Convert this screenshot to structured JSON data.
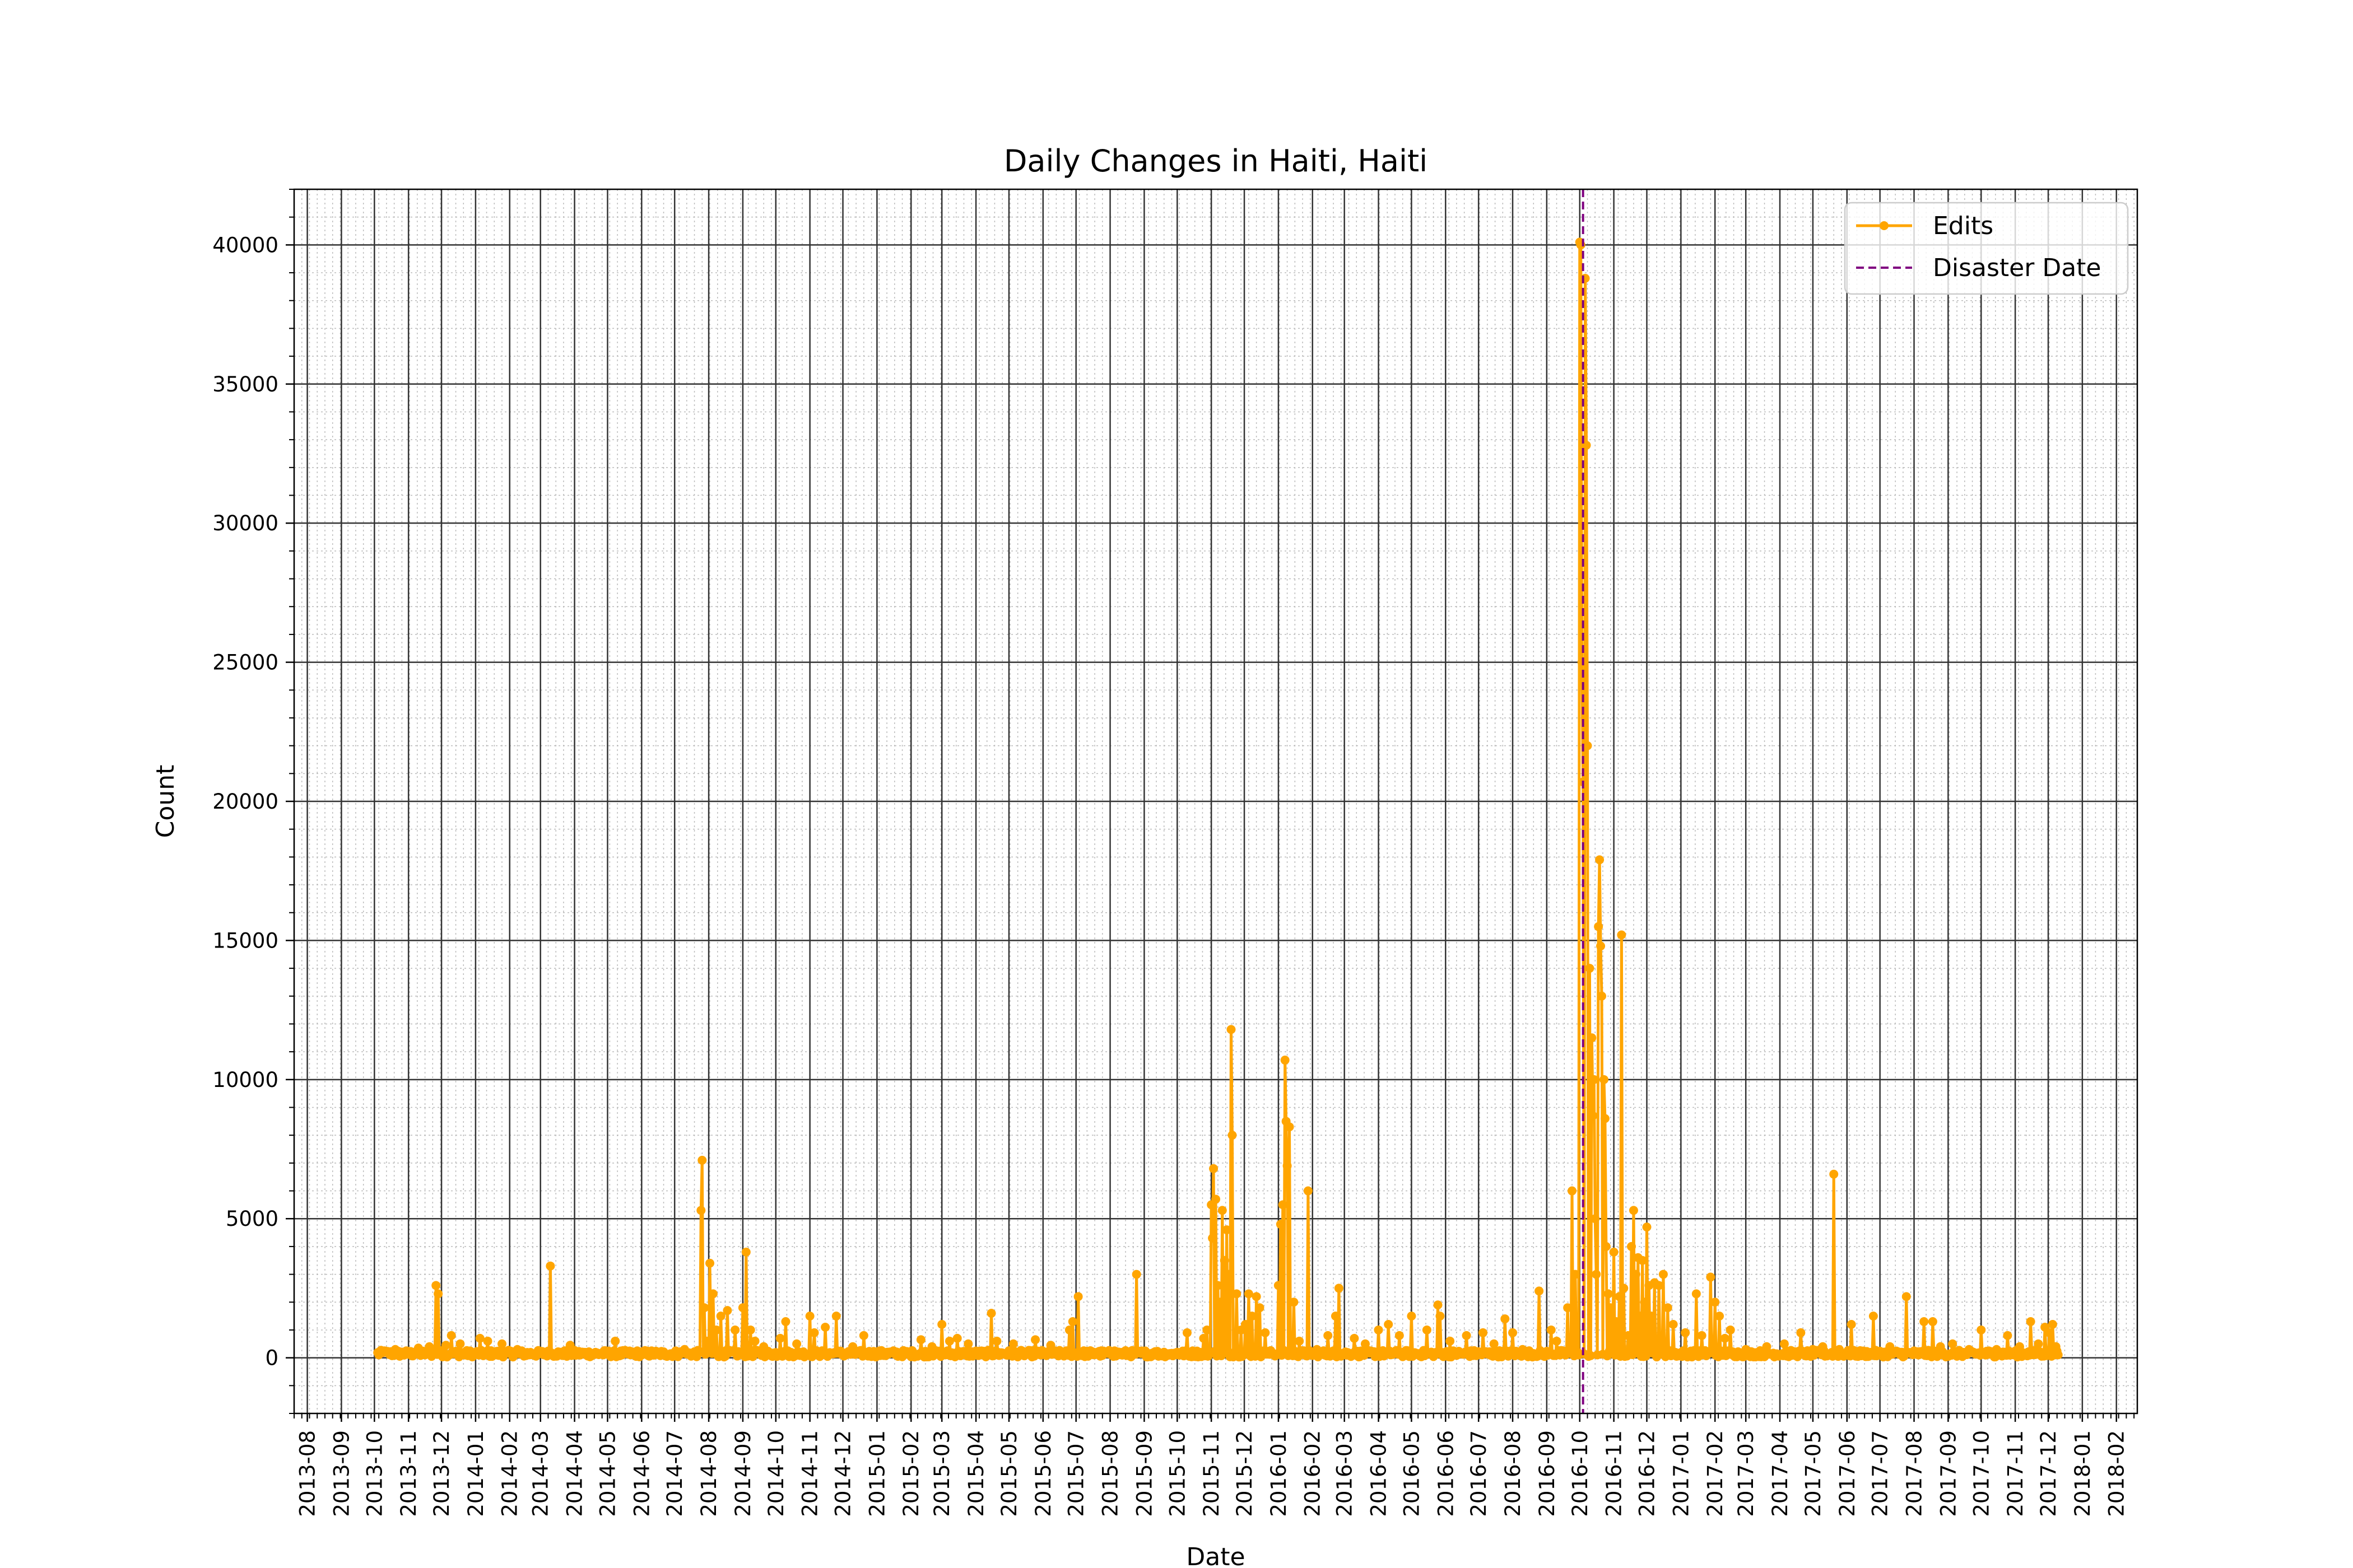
{
  "chart_data": {
    "type": "line",
    "title": "Daily Changes in Haiti, Haiti",
    "xlabel": "Date",
    "ylabel": "Count",
    "xlim": [
      "2013-07-20",
      "2018-02-20"
    ],
    "ylim": [
      -2000,
      42000
    ],
    "yticks": [
      0,
      5000,
      10000,
      15000,
      20000,
      25000,
      30000,
      35000,
      40000
    ],
    "xtick_labels": [
      "2013-08",
      "2013-09",
      "2013-10",
      "2013-11",
      "2013-12",
      "2014-01",
      "2014-02",
      "2014-03",
      "2014-04",
      "2014-05",
      "2014-06",
      "2014-07",
      "2014-08",
      "2014-09",
      "2014-10",
      "2014-11",
      "2014-12",
      "2015-01",
      "2015-02",
      "2015-03",
      "2015-04",
      "2015-05",
      "2015-06",
      "2015-07",
      "2015-08",
      "2015-09",
      "2015-10",
      "2015-11",
      "2015-12",
      "2016-01",
      "2016-02",
      "2016-03",
      "2016-04",
      "2016-05",
      "2016-06",
      "2016-07",
      "2016-08",
      "2016-09",
      "2016-10",
      "2016-11",
      "2016-12",
      "2017-01",
      "2017-02",
      "2017-03",
      "2017-04",
      "2017-05",
      "2017-06",
      "2017-07",
      "2017-08",
      "2017-09",
      "2017-10",
      "2017-11",
      "2017-12",
      "2018-01",
      "2018-02"
    ],
    "grid": true,
    "legend_position": "upper right",
    "series": [
      {
        "name": "Edits",
        "color": "#FFA500",
        "marker": "circle",
        "start_date": "2013-10-04",
        "end_date": "2017-12-10",
        "baseline": 150,
        "spikes": [
          [
            "2013-10-10",
            250
          ],
          [
            "2013-10-20",
            300
          ],
          [
            "2013-11-10",
            350
          ],
          [
            "2013-11-20",
            400
          ],
          [
            "2013-11-26",
            2600
          ],
          [
            "2013-11-28",
            2300
          ],
          [
            "2013-12-05",
            450
          ],
          [
            "2013-12-10",
            800
          ],
          [
            "2013-12-18",
            500
          ],
          [
            "2014-01-05",
            700
          ],
          [
            "2014-01-12",
            600
          ],
          [
            "2014-01-25",
            500
          ],
          [
            "2014-02-08",
            300
          ],
          [
            "2014-03-10",
            3300
          ],
          [
            "2014-03-28",
            450
          ],
          [
            "2014-05-08",
            600
          ],
          [
            "2014-06-20",
            150
          ],
          [
            "2014-07-05",
            200
          ],
          [
            "2014-07-10",
            300
          ],
          [
            "2014-07-25",
            5300
          ],
          [
            "2014-07-26",
            7100
          ],
          [
            "2014-07-28",
            1800
          ],
          [
            "2014-07-30",
            600
          ],
          [
            "2014-08-02",
            3400
          ],
          [
            "2014-08-05",
            2300
          ],
          [
            "2014-08-08",
            1000
          ],
          [
            "2014-08-12",
            1500
          ],
          [
            "2014-08-18",
            1700
          ],
          [
            "2014-08-25",
            1000
          ],
          [
            "2014-09-01",
            1800
          ],
          [
            "2014-09-04",
            3800
          ],
          [
            "2014-09-08",
            1000
          ],
          [
            "2014-09-12",
            600
          ],
          [
            "2014-09-20",
            400
          ],
          [
            "2014-10-05",
            700
          ],
          [
            "2014-10-10",
            1300
          ],
          [
            "2014-10-20",
            500
          ],
          [
            "2014-11-01",
            1500
          ],
          [
            "2014-11-05",
            900
          ],
          [
            "2014-11-15",
            1100
          ],
          [
            "2014-11-25",
            1500
          ],
          [
            "2014-12-10",
            400
          ],
          [
            "2014-12-20",
            800
          ],
          [
            "2015-01-10",
            200
          ],
          [
            "2015-02-10",
            650
          ],
          [
            "2015-02-20",
            400
          ],
          [
            "2015-03-01",
            1200
          ],
          [
            "2015-03-08",
            600
          ],
          [
            "2015-03-15",
            700
          ],
          [
            "2015-03-25",
            500
          ],
          [
            "2015-04-15",
            1600
          ],
          [
            "2015-04-20",
            600
          ],
          [
            "2015-05-05",
            500
          ],
          [
            "2015-05-25",
            650
          ],
          [
            "2015-06-08",
            450
          ],
          [
            "2015-06-25",
            1000
          ],
          [
            "2015-06-28",
            1300
          ],
          [
            "2015-07-03",
            2200
          ],
          [
            "2015-07-20",
            200
          ],
          [
            "2015-08-05",
            250
          ],
          [
            "2015-08-25",
            3000
          ],
          [
            "2015-09-10",
            200
          ],
          [
            "2015-09-25",
            150
          ],
          [
            "2015-10-01",
            200
          ],
          [
            "2015-10-10",
            900
          ],
          [
            "2015-10-25",
            700
          ],
          [
            "2015-10-28",
            1000
          ],
          [
            "2015-11-01",
            5500
          ],
          [
            "2015-11-02",
            4300
          ],
          [
            "2015-11-03",
            6800
          ],
          [
            "2015-11-05",
            5700
          ],
          [
            "2015-11-07",
            2600
          ],
          [
            "2015-11-09",
            2000
          ],
          [
            "2015-11-11",
            5300
          ],
          [
            "2015-11-13",
            3500
          ],
          [
            "2015-11-15",
            4600
          ],
          [
            "2015-11-17",
            3000
          ],
          [
            "2015-11-19",
            11800
          ],
          [
            "2015-11-20",
            8000
          ],
          [
            "2015-11-24",
            2300
          ],
          [
            "2015-11-28",
            1000
          ],
          [
            "2015-12-02",
            1200
          ],
          [
            "2015-12-05",
            2300
          ],
          [
            "2015-12-08",
            1500
          ],
          [
            "2015-12-12",
            2200
          ],
          [
            "2015-12-15",
            1800
          ],
          [
            "2015-12-20",
            900
          ],
          [
            "2016-01-01",
            2600
          ],
          [
            "2016-01-03",
            4800
          ],
          [
            "2016-01-05",
            5500
          ],
          [
            "2016-01-07",
            10700
          ],
          [
            "2016-01-08",
            8500
          ],
          [
            "2016-01-09",
            6900
          ],
          [
            "2016-01-11",
            8300
          ],
          [
            "2016-01-15",
            2000
          ],
          [
            "2016-01-20",
            600
          ],
          [
            "2016-01-28",
            6000
          ],
          [
            "2016-02-05",
            300
          ],
          [
            "2016-02-15",
            800
          ],
          [
            "2016-02-22",
            1500
          ],
          [
            "2016-02-25",
            2500
          ],
          [
            "2016-03-10",
            700
          ],
          [
            "2016-03-20",
            500
          ],
          [
            "2016-04-01",
            1000
          ],
          [
            "2016-04-10",
            1200
          ],
          [
            "2016-04-20",
            800
          ],
          [
            "2016-05-01",
            1500
          ],
          [
            "2016-05-15",
            1000
          ],
          [
            "2016-05-25",
            1900
          ],
          [
            "2016-05-27",
            1500
          ],
          [
            "2016-06-05",
            600
          ],
          [
            "2016-06-20",
            800
          ],
          [
            "2016-07-05",
            900
          ],
          [
            "2016-07-15",
            500
          ],
          [
            "2016-07-25",
            1400
          ],
          [
            "2016-08-01",
            900
          ],
          [
            "2016-08-10",
            300
          ],
          [
            "2016-08-25",
            2400
          ],
          [
            "2016-09-05",
            1000
          ],
          [
            "2016-09-10",
            600
          ],
          [
            "2016-09-20",
            1800
          ],
          [
            "2016-09-24",
            6000
          ],
          [
            "2016-09-27",
            3000
          ],
          [
            "2016-10-01",
            40100
          ],
          [
            "2016-10-02",
            40000
          ],
          [
            "2016-10-03",
            25000
          ],
          [
            "2016-10-04",
            20700
          ],
          [
            "2016-10-06",
            38800
          ],
          [
            "2016-10-07",
            32800
          ],
          [
            "2016-10-08",
            22000
          ],
          [
            "2016-10-10",
            14000
          ],
          [
            "2016-10-12",
            11500
          ],
          [
            "2016-10-13",
            8700
          ],
          [
            "2016-10-14",
            10000
          ],
          [
            "2016-10-15",
            5000
          ],
          [
            "2016-10-16",
            3000
          ],
          [
            "2016-10-18",
            15500
          ],
          [
            "2016-10-19",
            17900
          ],
          [
            "2016-10-20",
            14800
          ],
          [
            "2016-10-21",
            13000
          ],
          [
            "2016-10-23",
            10000
          ],
          [
            "2016-10-24",
            8600
          ],
          [
            "2016-10-25",
            4000
          ],
          [
            "2016-10-27",
            2300
          ],
          [
            "2016-10-29",
            1800
          ],
          [
            "2016-11-01",
            3800
          ],
          [
            "2016-11-03",
            1300
          ],
          [
            "2016-11-06",
            2200
          ],
          [
            "2016-11-08",
            15200
          ],
          [
            "2016-11-10",
            2500
          ],
          [
            "2016-11-14",
            800
          ],
          [
            "2016-11-17",
            4000
          ],
          [
            "2016-11-19",
            5300
          ],
          [
            "2016-11-21",
            3000
          ],
          [
            "2016-11-23",
            3600
          ],
          [
            "2016-11-25",
            1500
          ],
          [
            "2016-11-27",
            3500
          ],
          [
            "2016-11-29",
            2000
          ],
          [
            "2016-12-01",
            4700
          ],
          [
            "2016-12-03",
            2600
          ],
          [
            "2016-12-05",
            1500
          ],
          [
            "2016-12-08",
            2700
          ],
          [
            "2016-12-12",
            2600
          ],
          [
            "2016-12-16",
            3000
          ],
          [
            "2016-12-20",
            1800
          ],
          [
            "2016-12-25",
            1200
          ],
          [
            "2017-01-05",
            900
          ],
          [
            "2017-01-15",
            2300
          ],
          [
            "2017-01-20",
            800
          ],
          [
            "2017-01-28",
            2900
          ],
          [
            "2017-02-01",
            2000
          ],
          [
            "2017-02-05",
            1500
          ],
          [
            "2017-02-10",
            700
          ],
          [
            "2017-02-15",
            1000
          ],
          [
            "2017-03-01",
            300
          ],
          [
            "2017-03-20",
            400
          ],
          [
            "2017-04-05",
            500
          ],
          [
            "2017-04-20",
            900
          ],
          [
            "2017-05-01",
            300
          ],
          [
            "2017-05-10",
            400
          ],
          [
            "2017-05-20",
            6600
          ],
          [
            "2017-05-25",
            300
          ],
          [
            "2017-06-05",
            1200
          ],
          [
            "2017-06-25",
            1500
          ],
          [
            "2017-07-10",
            400
          ],
          [
            "2017-07-25",
            2200
          ],
          [
            "2017-08-10",
            1300
          ],
          [
            "2017-08-18",
            1300
          ],
          [
            "2017-08-25",
            400
          ],
          [
            "2017-09-05",
            500
          ],
          [
            "2017-09-20",
            300
          ],
          [
            "2017-10-01",
            1000
          ],
          [
            "2017-10-15",
            300
          ],
          [
            "2017-10-25",
            800
          ],
          [
            "2017-11-05",
            400
          ],
          [
            "2017-11-15",
            1300
          ],
          [
            "2017-11-22",
            500
          ],
          [
            "2017-11-28",
            1100
          ],
          [
            "2017-12-02",
            900
          ],
          [
            "2017-12-05",
            1200
          ],
          [
            "2017-12-08",
            400
          ]
        ]
      },
      {
        "name": "Disaster Date",
        "color": "#800080",
        "style": "dashed",
        "date": "2016-10-04"
      }
    ]
  }
}
